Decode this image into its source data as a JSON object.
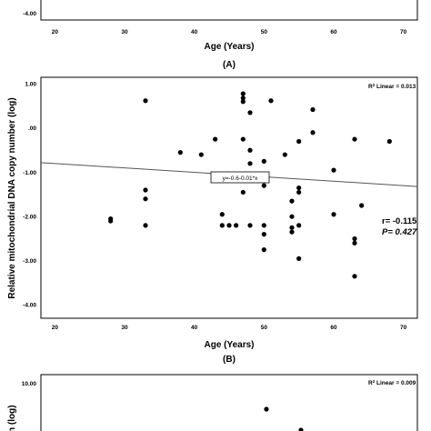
{
  "chart_data": [
    {
      "id": "A",
      "type": "scatter",
      "panel_label": "(A)",
      "xlabel": "Age (Years)",
      "ylabel": "",
      "x_ticks": [
        "20",
        "30",
        "40",
        "50",
        "60",
        "70"
      ],
      "y_ticks": [
        "-4.00"
      ],
      "xlim": [
        18,
        72
      ]
    },
    {
      "id": "B",
      "type": "scatter",
      "panel_label": "(B)",
      "xlabel": "Age (Years)",
      "ylabel": "Relative mitochondrial DNA copy number (log)",
      "x_ticks": [
        "20",
        "30",
        "40",
        "50",
        "60",
        "70"
      ],
      "y_ticks": [
        "1.00",
        ".00",
        "-1.00",
        "-2.00",
        "-3.00",
        "-4.00"
      ],
      "xlim": [
        18,
        72
      ],
      "ylim": [
        -4.3,
        1.15
      ],
      "r2_prefix": "R",
      "r2_sup": "2",
      "r2_suffix": " Linear = 0.013",
      "equation": "y=-0.6-0.01*x",
      "fit_line": {
        "intercept": -0.6,
        "slope": -0.01,
        "x_range": [
          18,
          72
        ]
      },
      "r_text": "r= -0.115",
      "p_text": "P= 0.427",
      "points": [
        [
          28,
          -2.05
        ],
        [
          28,
          -2.1
        ],
        [
          33,
          0.62
        ],
        [
          33,
          -1.4
        ],
        [
          33,
          -1.6
        ],
        [
          33,
          -2.2
        ],
        [
          38,
          -0.55
        ],
        [
          41,
          -0.6
        ],
        [
          43,
          -0.25
        ],
        [
          44,
          -1.95
        ],
        [
          44,
          -2.2
        ],
        [
          45,
          -2.2
        ],
        [
          46,
          -2.2
        ],
        [
          47,
          0.78
        ],
        [
          47,
          0.68
        ],
        [
          47,
          0.6
        ],
        [
          47,
          -0.25
        ],
        [
          47,
          -1.05
        ],
        [
          47,
          -1.45
        ],
        [
          48,
          -2.2
        ],
        [
          48,
          0.35
        ],
        [
          48,
          -0.8
        ],
        [
          48,
          -0.5
        ],
        [
          50,
          -0.75
        ],
        [
          50,
          -1.3
        ],
        [
          50,
          -2.2
        ],
        [
          50,
          -2.4
        ],
        [
          50,
          -2.75
        ],
        [
          51,
          0.62
        ],
        [
          53,
          -0.6
        ],
        [
          54,
          -1.65
        ],
        [
          54,
          -2.0
        ],
        [
          54,
          -2.25
        ],
        [
          54,
          -2.35
        ],
        [
          55,
          -0.3
        ],
        [
          55,
          -1.35
        ],
        [
          55,
          -1.45
        ],
        [
          55,
          -2.2
        ],
        [
          55,
          -2.95
        ],
        [
          57,
          0.42
        ],
        [
          57,
          -0.1
        ],
        [
          60,
          -0.95
        ],
        [
          60,
          -1.95
        ],
        [
          63,
          -0.25
        ],
        [
          63,
          -2.5
        ],
        [
          63,
          -2.6
        ],
        [
          63,
          -3.35
        ],
        [
          64,
          -1.75
        ],
        [
          68,
          -0.3
        ]
      ]
    },
    {
      "id": "C",
      "type": "scatter",
      "xlabel": "",
      "ylabel_visible": "n (log)",
      "y_ticks": [
        "10.00"
      ],
      "r2_prefix": "R",
      "r2_sup": "2",
      "r2_suffix": " Linear = 0.009",
      "points": [
        [
          50,
          0
        ],
        [
          54,
          0
        ]
      ]
    }
  ]
}
